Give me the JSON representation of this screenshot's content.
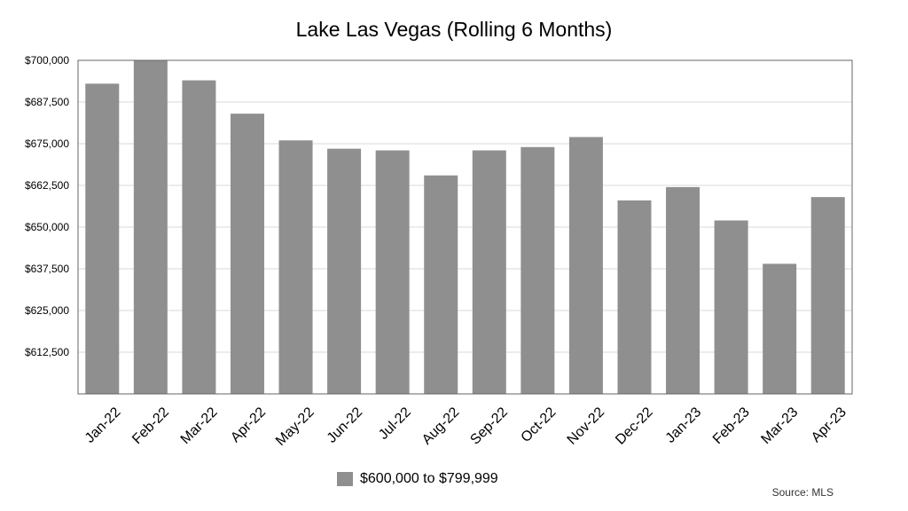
{
  "chart_data": {
    "type": "bar",
    "title": "Lake Las Vegas (Rolling 6 Months)",
    "xlabel": "",
    "ylabel": "",
    "categories": [
      "Jan-22",
      "Feb-22",
      "Mar-22",
      "Apr-22",
      "May-22",
      "Jun-22",
      "Jul-22",
      "Aug-22",
      "Sep-22",
      "Oct-22",
      "Nov-22",
      "Dec-22",
      "Jan-23",
      "Feb-23",
      "Mar-23",
      "Apr-23"
    ],
    "series": [
      {
        "name": "$600,000 to $799,999",
        "color": "#8f8f8f",
        "values": [
          693000,
          700000,
          694000,
          684000,
          676000,
          673500,
          673000,
          665500,
          673000,
          674000,
          677000,
          658000,
          662000,
          652000,
          639000,
          659000
        ]
      }
    ],
    "ylim": [
      600000,
      700000
    ],
    "yticks": [
      612500,
      625000,
      637500,
      650000,
      662500,
      675000,
      687500,
      700000
    ],
    "ytick_labels": [
      "$612,500",
      "$625,000",
      "$637,500",
      "$650,000",
      "$662,500",
      "$675,000",
      "$687,500",
      "$700,000"
    ],
    "grid": true,
    "legend_position": "bottom",
    "source": "Source: MLS"
  }
}
